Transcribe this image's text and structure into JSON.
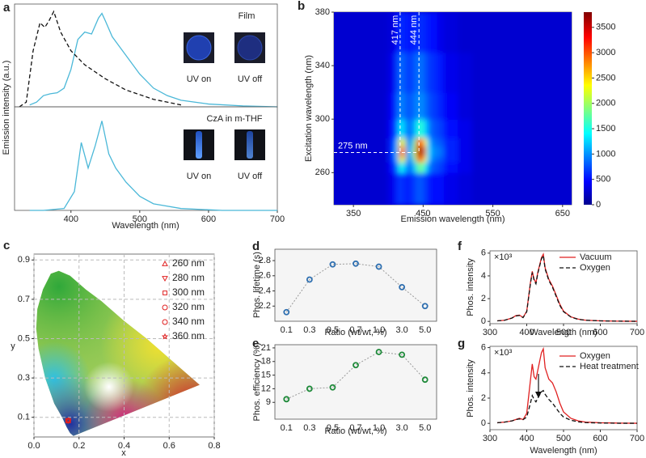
{
  "chart_data": [
    {
      "type": "line",
      "panel": "a",
      "ylabel": "Emission intensity (a.u.)",
      "annotations": [
        "Film",
        "UV on",
        "UV off"
      ],
      "xlim": [
        318,
        700
      ],
      "ylim": [
        0,
        1.1
      ],
      "series": [
        {
          "color": "#4bb8d8",
          "x": [
            340,
            350,
            360,
            370,
            380,
            390,
            400,
            410,
            420,
            430,
            440,
            445,
            450,
            460,
            470,
            480,
            500,
            520,
            540,
            560,
            600,
            650,
            700
          ],
          "values": [
            0.02,
            0.05,
            0.12,
            0.14,
            0.15,
            0.2,
            0.4,
            0.72,
            0.8,
            0.78,
            0.95,
            1.0,
            0.92,
            0.75,
            0.65,
            0.55,
            0.35,
            0.2,
            0.12,
            0.07,
            0.03,
            0.01,
            0.0
          ]
        },
        {
          "color": "#111111",
          "dash": true,
          "x": [
            325,
            335,
            345,
            355,
            362,
            368,
            375,
            385,
            400,
            420,
            450,
            480,
            520,
            560
          ],
          "values": [
            0.0,
            0.05,
            0.6,
            0.9,
            0.85,
            0.92,
            1.02,
            0.8,
            0.6,
            0.45,
            0.3,
            0.18,
            0.08,
            0.02
          ]
        }
      ]
    },
    {
      "type": "line",
      "xlabel": "Wavelength (nm)",
      "annotations": [
        "CzA in m-THF",
        "UV on",
        "UV off"
      ],
      "xlim": [
        318,
        700
      ],
      "ylim": [
        0,
        1.1
      ],
      "xticks": [
        400,
        500,
        600,
        700
      ],
      "series": [
        {
          "color": "#4bb8d8",
          "x": [
            340,
            360,
            390,
            405,
            415,
            425,
            435,
            445,
            455,
            465,
            480,
            500,
            520,
            560,
            620,
            700
          ],
          "values": [
            0.0,
            0.0,
            0.02,
            0.2,
            0.72,
            0.45,
            0.68,
            0.95,
            0.6,
            0.45,
            0.3,
            0.15,
            0.07,
            0.02,
            0.0,
            0.0
          ]
        }
      ]
    },
    {
      "type": "heatmap",
      "panel": "b",
      "xlabel": "Emission wavelength (nm)",
      "ylabel": "Excitation wavelength (nm)",
      "xlim": [
        322,
        663
      ],
      "ylim": [
        236,
        380
      ],
      "xticks": [
        350,
        450,
        550,
        650
      ],
      "yticks": [
        260,
        300,
        340,
        380
      ],
      "clim": [
        0,
        3800
      ],
      "cticks": [
        0,
        500,
        1000,
        1500,
        2000,
        2500,
        3000,
        3500
      ],
      "x_markers": [
        {
          "value": 417,
          "label": "417 nm"
        },
        {
          "value": 444,
          "label": "444 nm"
        }
      ],
      "y_markers": [
        {
          "value": 275,
          "label": "275 nm"
        }
      ],
      "x": [
        322,
        400,
        410,
        415,
        420,
        425,
        430,
        435,
        440,
        445,
        450,
        455,
        460,
        470,
        480,
        500,
        520,
        560
      ],
      "y": [
        236,
        260,
        268,
        272,
        276,
        280,
        286,
        300,
        320,
        350
      ],
      "z": [
        [
          300,
          400,
          600,
          700,
          600,
          600,
          600,
          700,
          800,
          800,
          700,
          600,
          500,
          500,
          400,
          350,
          300,
          300
        ],
        [
          300,
          500,
          900,
          1500,
          1300,
          900,
          900,
          1200,
          1700,
          1900,
          1500,
          1000,
          800,
          700,
          500,
          400,
          300,
          300
        ],
        [
          300,
          600,
          1200,
          2500,
          2200,
          1000,
          1000,
          1800,
          2800,
          3200,
          2400,
          1300,
          900,
          800,
          600,
          400,
          300,
          300
        ],
        [
          300,
          600,
          1300,
          3000,
          2700,
          1100,
          1100,
          2100,
          3400,
          3800,
          2800,
          1400,
          1000,
          900,
          600,
          400,
          300,
          300
        ],
        [
          300,
          600,
          1300,
          3000,
          2700,
          1100,
          1100,
          2100,
          3500,
          3800,
          2900,
          1400,
          1000,
          900,
          600,
          400,
          300,
          300
        ],
        [
          300,
          600,
          1200,
          2500,
          2200,
          1000,
          1000,
          1800,
          2900,
          3300,
          2400,
          1300,
          900,
          800,
          600,
          400,
          300,
          300
        ],
        [
          300,
          500,
          900,
          1400,
          1200,
          900,
          900,
          1100,
          1500,
          1600,
          1300,
          1000,
          800,
          700,
          500,
          400,
          300,
          300
        ],
        [
          300,
          450,
          800,
          1000,
          900,
          800,
          800,
          900,
          1000,
          1000,
          900,
          800,
          700,
          600,
          450,
          350,
          300,
          300
        ],
        [
          300,
          400,
          700,
          900,
          800,
          700,
          700,
          800,
          900,
          900,
          800,
          700,
          650,
          550,
          400,
          350,
          300,
          300
        ],
        [
          300,
          350,
          500,
          650,
          600,
          550,
          550,
          600,
          650,
          650,
          600,
          550,
          500,
          400,
          350,
          300,
          300,
          300
        ]
      ]
    },
    {
      "type": "scatter",
      "panel": "c",
      "xlabel": "x",
      "ylabel": "y",
      "grid": true,
      "xlim": [
        0,
        0.8
      ],
      "ylim": [
        0,
        0.93
      ],
      "xticks": [
        {
          "value": 0,
          "label": "0.0"
        },
        0.2,
        0.4,
        0.6,
        0.8
      ],
      "yticks": [
        0.1,
        0.3,
        0.5,
        0.7,
        0.9
      ],
      "series": [
        {
          "name": "260 nm",
          "color": "#e02020",
          "marker": "triangle-up",
          "x": [
            0.152
          ],
          "values": [
            0.083
          ]
        },
        {
          "name": "280 nm",
          "color": "#e02020",
          "marker": "triangle-down",
          "x": [
            0.152
          ],
          "values": [
            0.083
          ]
        },
        {
          "name": "300 nm",
          "color": "#e02020",
          "marker": "square",
          "x": [
            0.152
          ],
          "values": [
            0.083
          ]
        },
        {
          "name": "320 nm",
          "color": "#e02020",
          "marker": "circle",
          "x": [
            0.152
          ],
          "values": [
            0.083
          ]
        },
        {
          "name": "340 nm",
          "color": "#e02020",
          "marker": "circle",
          "x": [
            0.152
          ],
          "values": [
            0.083
          ]
        },
        {
          "name": "360 nm",
          "color": "#e02020",
          "marker": "star",
          "x": [
            0.152
          ],
          "values": [
            0.083
          ]
        }
      ]
    },
    {
      "type": "line",
      "panel": "d",
      "xlabel": "Ratio (wt/wt, %)",
      "ylabel": "Phos. lifetime (s)",
      "markers": true,
      "categories": [
        "0.1",
        "0.3",
        "0.5",
        "0.7",
        "1.0",
        "3.0",
        "5.0"
      ],
      "ylim": [
        2.0,
        2.95
      ],
      "yticks": [
        2.2,
        2.4,
        2.6,
        2.8
      ],
      "series": [
        {
          "color": "#2e6fb0",
          "line_color": "#9a9a9a",
          "values": [
            2.12,
            2.55,
            2.75,
            2.76,
            2.72,
            2.45,
            2.2
          ]
        }
      ]
    },
    {
      "type": "line",
      "panel": "e",
      "xlabel": "Ratio (wt/wt, %)",
      "ylabel": "Phos. efficiency (%)",
      "markers": true,
      "categories": [
        "0.1",
        "0.3",
        "0.5",
        "0.7",
        "1.0",
        "3.0",
        "5.0"
      ],
      "ylim": [
        5.3,
        21.7
      ],
      "yticks": [
        9,
        12,
        15,
        18,
        21
      ],
      "series": [
        {
          "color": "#1f8a3a",
          "line_color": "#9a9a9a",
          "values": [
            9.7,
            12,
            12.3,
            17.2,
            20.1,
            19.5,
            14
          ]
        }
      ]
    },
    {
      "type": "line",
      "panel": "f",
      "xlabel": "Wavelength (nm)",
      "ylabel": "Phos. intensity",
      "y_unit": "×10³",
      "xlim": [
        300,
        700
      ],
      "ylim": [
        -0.2,
        6.2
      ],
      "xticks": [
        300,
        400,
        500,
        600,
        700
      ],
      "yticks": [
        0,
        2,
        4,
        6
      ],
      "x": [
        320,
        340,
        360,
        370,
        380,
        390,
        400,
        410,
        415,
        420,
        425,
        430,
        440,
        445,
        450,
        460,
        470,
        480,
        490,
        500,
        520,
        540,
        560,
        600,
        650,
        700
      ],
      "series": [
        {
          "name": "Vacuum",
          "color": "#e02020",
          "values": [
            0.05,
            0.1,
            0.3,
            0.5,
            0.55,
            0.35,
            0.9,
            3.4,
            4.4,
            3.7,
            3.4,
            4.3,
            5.6,
            5.9,
            4.7,
            3.7,
            3.1,
            2.3,
            1.5,
            0.9,
            0.4,
            0.2,
            0.1,
            0.05,
            0.02,
            0.01
          ]
        },
        {
          "name": "Oxygen",
          "color": "#111111",
          "dash": true,
          "values": [
            0.05,
            0.1,
            0.3,
            0.48,
            0.52,
            0.33,
            0.85,
            3.3,
            4.3,
            3.6,
            3.3,
            4.2,
            5.5,
            5.8,
            4.6,
            3.6,
            3.0,
            2.2,
            1.4,
            0.85,
            0.38,
            0.18,
            0.1,
            0.05,
            0.02,
            0.01
          ]
        }
      ]
    },
    {
      "type": "line",
      "panel": "g",
      "xlabel": "Wavelength (nm)",
      "ylabel": "Phos. intensity",
      "y_unit": "×10³",
      "xlim": [
        300,
        700
      ],
      "ylim": [
        -0.5,
        6.1
      ],
      "xticks": [
        300,
        400,
        500,
        600,
        700
      ],
      "yticks": [
        0,
        2,
        4,
        6
      ],
      "x": [
        320,
        340,
        360,
        370,
        380,
        390,
        400,
        410,
        415,
        420,
        425,
        430,
        440,
        445,
        450,
        460,
        470,
        480,
        490,
        500,
        520,
        540,
        560,
        600,
        650,
        700
      ],
      "series": [
        {
          "name": "Oxygen",
          "color": "#e02020",
          "values": [
            0.05,
            0.1,
            0.2,
            0.3,
            0.4,
            0.3,
            0.8,
            3.4,
            4.7,
            3.7,
            3.5,
            4.2,
            5.6,
            5.9,
            4.4,
            3.5,
            3.2,
            2.5,
            1.6,
            0.9,
            0.4,
            0.2,
            0.1,
            0.05,
            0.02,
            0.01
          ]
        },
        {
          "name": "Heat treatment",
          "color": "#111111",
          "dash": true,
          "values": [
            0.05,
            0.1,
            0.2,
            0.3,
            0.35,
            0.3,
            0.5,
            1.6,
            2.2,
            1.9,
            1.7,
            2.0,
            2.5,
            2.6,
            2.3,
            1.9,
            1.6,
            1.2,
            0.8,
            0.5,
            0.25,
            0.12,
            0.06,
            0.03,
            0.01,
            0.01
          ]
        }
      ]
    }
  ]
}
